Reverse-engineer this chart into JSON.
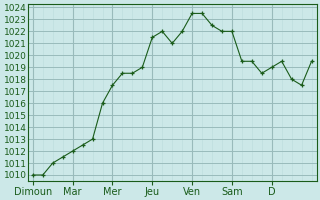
{
  "background_color": "#cce8e8",
  "grid_color_major": "#99bbbb",
  "grid_color_minor": "#bbdddd",
  "line_color": "#1a5c1a",
  "marker_color": "#1a5c1a",
  "ylim_min": 1009.5,
  "ylim_max": 1024.3,
  "yticks": [
    1010,
    1011,
    1012,
    1013,
    1014,
    1015,
    1016,
    1017,
    1018,
    1019,
    1020,
    1021,
    1022,
    1023,
    1024
  ],
  "x_labels": [
    "Dimoun",
    "Mar",
    "Mer",
    "Jeu",
    "Ven",
    "Sam",
    "D"
  ],
  "data_y": [
    1010.0,
    1010.0,
    1011.0,
    1011.5,
    1012.0,
    1012.5,
    1013.0,
    1016.0,
    1017.5,
    1018.5,
    1018.5,
    1019.0,
    1021.5,
    1022.0,
    1021.0,
    1022.0,
    1023.5,
    1023.5,
    1022.5,
    1022.0,
    1022.0,
    1019.5,
    1019.5,
    1018.5,
    1019.0,
    1019.5,
    1018.0,
    1017.5,
    1019.5
  ],
  "tick_fontsize": 6.5,
  "label_fontsize": 7,
  "points_per_day": 4,
  "num_days": 7
}
